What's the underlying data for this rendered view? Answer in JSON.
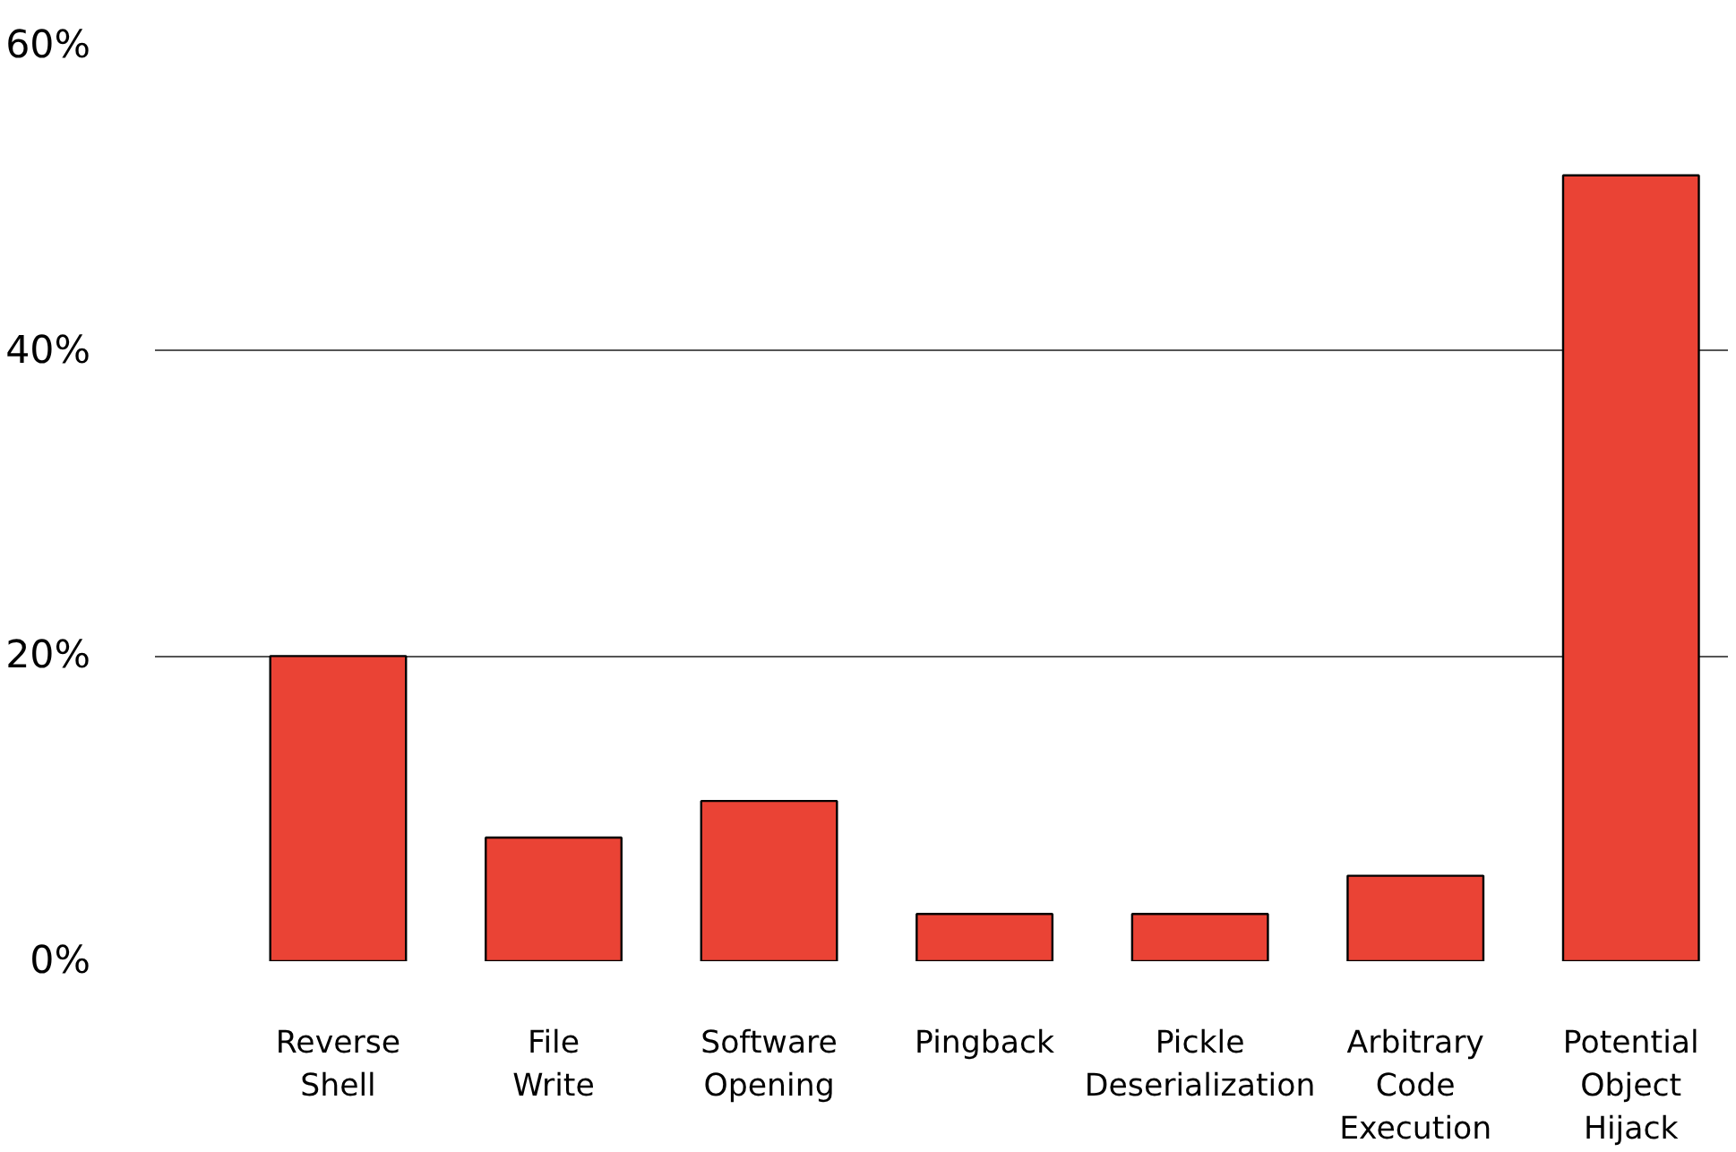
{
  "chart_data": {
    "type": "bar",
    "categories": [
      "Reverse Shell",
      "File Write",
      "Software Opening",
      "Pingback",
      "Pickle Deserialization",
      "Arbitrary Code Execution",
      "Potential Object Hijack"
    ],
    "values": [
      20,
      8.1,
      10.5,
      3.1,
      3.1,
      5.6,
      51.5
    ],
    "color": "#ea4335",
    "ylim": [
      0,
      60
    ],
    "yticks": [
      {
        "value": 0,
        "label": "0%"
      },
      {
        "value": 20,
        "label": "20%"
      },
      {
        "value": 40,
        "label": "40%"
      },
      {
        "value": 60,
        "label": "60%"
      }
    ],
    "grid": "y"
  }
}
